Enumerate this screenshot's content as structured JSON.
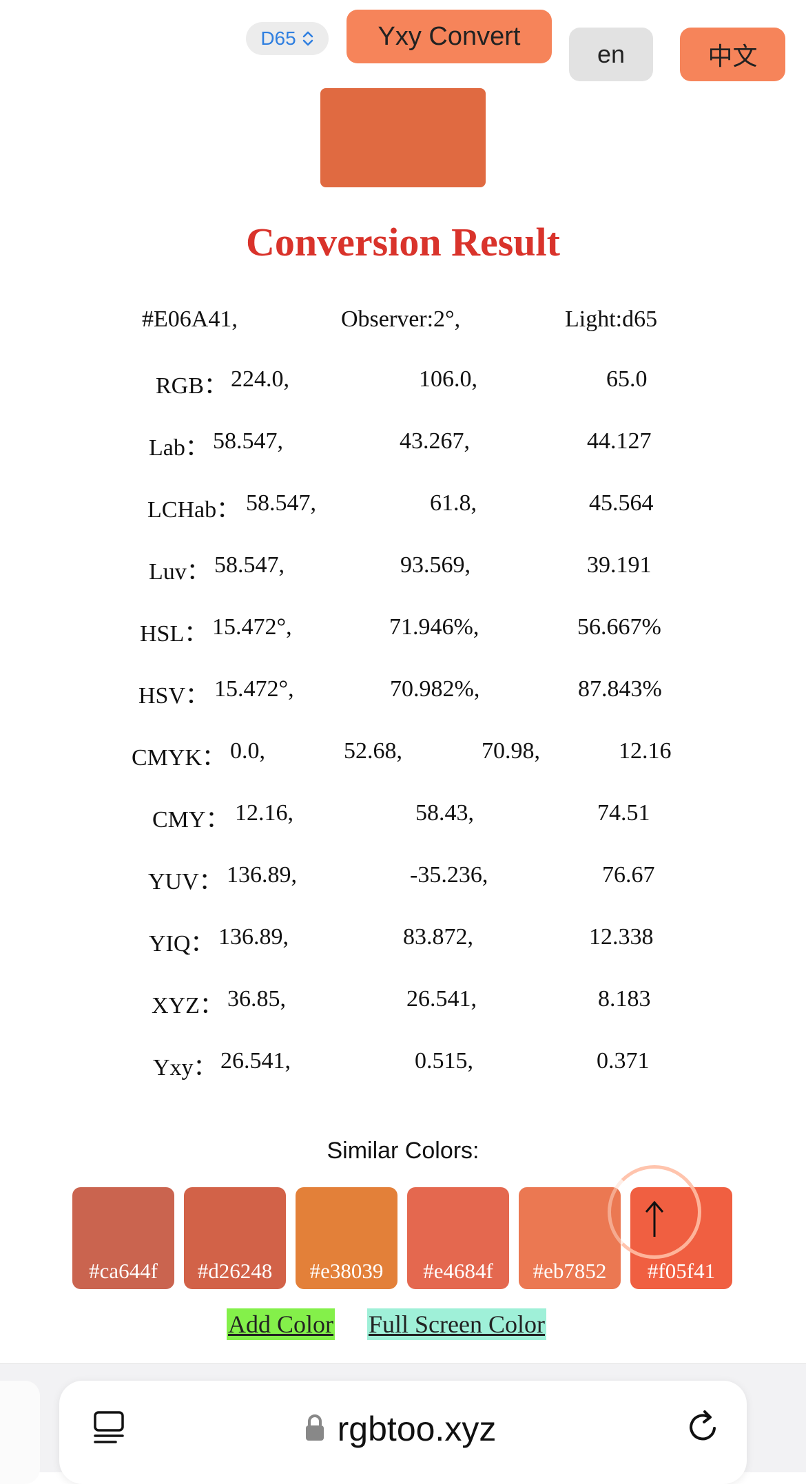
{
  "toolbar": {
    "illuminant": "D65",
    "convert_label": "Yxy Convert",
    "lang_en": "en",
    "lang_zh": "中文"
  },
  "result": {
    "swatch_color": "#E06A41",
    "title": "Conversion Result",
    "hex": "#E06A41,",
    "observer": "Observer:2°,",
    "light": "Light:d65",
    "rows": {
      "rgb": {
        "label": "RGB：",
        "v1": "224.0,",
        "v2": "106.0,",
        "v3": "65.0"
      },
      "lab": {
        "label": "Lab：",
        "v1": "58.547,",
        "v2": "43.267,",
        "v3": "44.127"
      },
      "lchab": {
        "label": "LCHab：",
        "v1": "58.547,",
        "v2": "61.8,",
        "v3": "45.564"
      },
      "luv": {
        "label": "Luv：",
        "v1": "58.547,",
        "v2": "93.569,",
        "v3": "39.191"
      },
      "hsl": {
        "label": "HSL：",
        "v1": "15.472°,",
        "v2": "71.946%,",
        "v3": "56.667%"
      },
      "hsv": {
        "label": "HSV：",
        "v1": "15.472°,",
        "v2": "70.982%,",
        "v3": "87.843%"
      },
      "cmyk": {
        "label": "CMYK：",
        "v1": "0.0,",
        "v2": "52.68,",
        "v3": "70.98,",
        "v4": "12.16"
      },
      "cmy": {
        "label": "CMY：",
        "v1": "12.16,",
        "v2": "58.43,",
        "v3": "74.51"
      },
      "yuv": {
        "label": "YUV：",
        "v1": "136.89,",
        "v2": "-35.236,",
        "v3": "76.67"
      },
      "yiq": {
        "label": "YIQ：",
        "v1": "136.89,",
        "v2": "83.872,",
        "v3": "12.338"
      },
      "xyz": {
        "label": "XYZ：",
        "v1": "36.85,",
        "v2": "26.541,",
        "v3": "8.183"
      },
      "yxy": {
        "label": "Yxy：",
        "v1": "26.541,",
        "v2": "0.515,",
        "v3": "0.371"
      }
    }
  },
  "similar": {
    "label": "Similar Colors:",
    "colors": [
      {
        "hex": "#ca644f",
        "label": "#ca644f"
      },
      {
        "hex": "#d26248",
        "label": "#d26248"
      },
      {
        "hex": "#e38039",
        "label": "#e38039"
      },
      {
        "hex": "#e4684f",
        "label": "#e4684f"
      },
      {
        "hex": "#eb7852",
        "label": "#eb7852"
      },
      {
        "hex": "#f05f41",
        "label": "#f05f41"
      }
    ]
  },
  "links": {
    "add_color": "Add Color",
    "full_screen": "Full Screen Color",
    "add_color_bg": "#84f04a",
    "full_screen_bg": "#9ff0d8"
  },
  "browser": {
    "url": "rgbtoo.xyz"
  },
  "colors": {
    "accent": "#f6845a",
    "title": "#d9332b",
    "link_blue": "#2f7fe0"
  },
  "icons": {
    "illuminant_toggle": "chevron-up-down-icon",
    "scroll_top": "arrow-up-icon",
    "tabs": "tabs-icon",
    "lock": "lock-icon",
    "reload": "reload-icon"
  }
}
